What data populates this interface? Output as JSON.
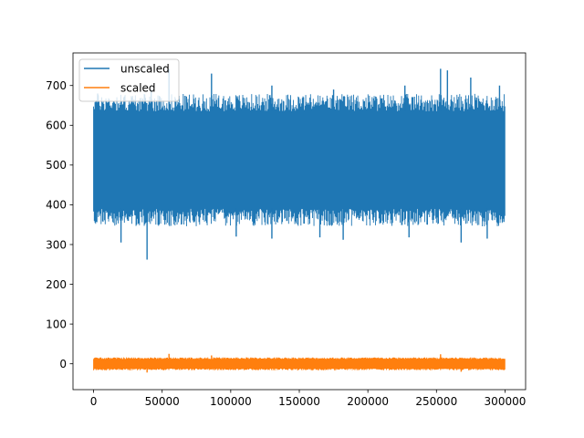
{
  "chart_data": {
    "type": "line",
    "title": "",
    "xlabel": "",
    "ylabel": "",
    "xlim": [
      -15000,
      315000
    ],
    "ylim": [
      -65,
      782
    ],
    "grid": false,
    "legend_placement": "top-left",
    "x_ticks": [
      0,
      50000,
      100000,
      150000,
      200000,
      250000,
      300000
    ],
    "x_tick_labels": [
      "0",
      "50000",
      "100000",
      "150000",
      "200000",
      "250000",
      "300000"
    ],
    "y_ticks": [
      0,
      100,
      200,
      300,
      400,
      500,
      600,
      700
    ],
    "y_tick_labels": [
      "0",
      "100",
      "200",
      "300",
      "400",
      "500",
      "600",
      "700"
    ],
    "series": [
      {
        "name": "unscaled",
        "color": "#1f77b4",
        "x_range": [
          0,
          300000
        ],
        "center": 512,
        "band": [
          390,
          635
        ],
        "min": 262,
        "max": 742,
        "spikes_high": [
          [
            3000,
            680
          ],
          [
            42000,
            690
          ],
          [
            55000,
            742
          ],
          [
            86000,
            730
          ],
          [
            130000,
            700
          ],
          [
            175000,
            690
          ],
          [
            227000,
            700
          ],
          [
            253000,
            742
          ],
          [
            258000,
            738
          ],
          [
            275000,
            720
          ],
          [
            296000,
            700
          ]
        ],
        "spikes_low": [
          [
            20000,
            305
          ],
          [
            39000,
            262
          ],
          [
            104000,
            320
          ],
          [
            130000,
            315
          ],
          [
            165000,
            318
          ],
          [
            182000,
            312
          ],
          [
            230000,
            318
          ],
          [
            268000,
            305
          ],
          [
            287000,
            315
          ]
        ]
      },
      {
        "name": "scaled",
        "color": "#ff7f0e",
        "x_range": [
          0,
          300000
        ],
        "center": 0,
        "band": [
          -12,
          12
        ],
        "min": -22,
        "max": 25,
        "spikes_high": [
          [
            55000,
            25
          ],
          [
            86000,
            21
          ],
          [
            253000,
            24
          ]
        ],
        "spikes_low": [
          [
            39000,
            -22
          ],
          [
            268000,
            -20
          ]
        ]
      }
    ]
  },
  "legend": {
    "items": [
      {
        "label": "unscaled",
        "color": "#1f77b4"
      },
      {
        "label": "scaled",
        "color": "#ff7f0e"
      }
    ]
  }
}
